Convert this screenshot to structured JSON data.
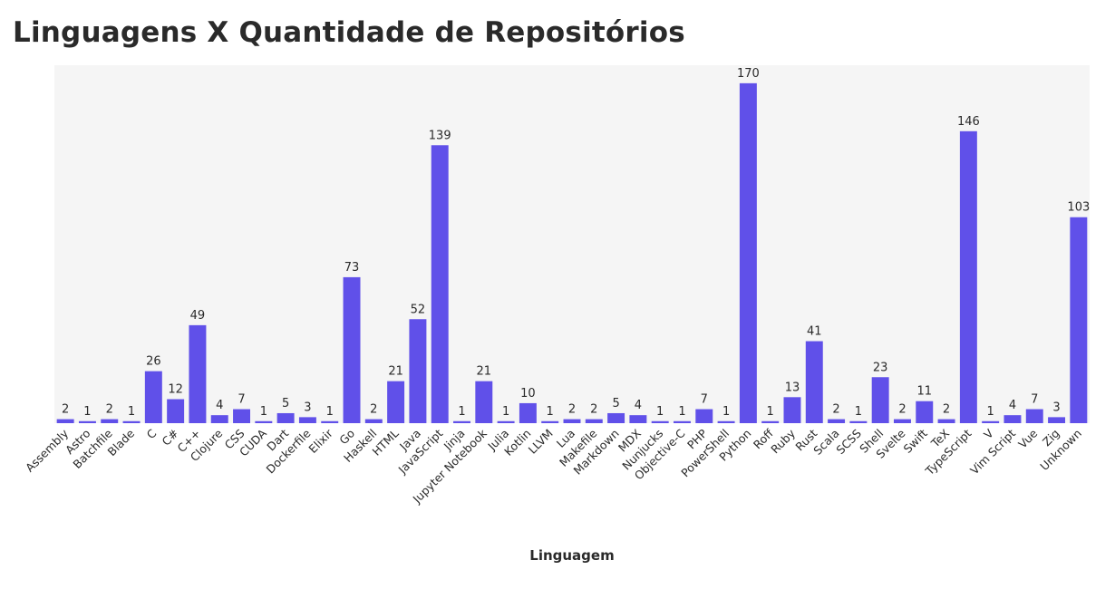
{
  "chart_data": {
    "type": "bar",
    "title": "Linguagens X Quantidade de Repositórios",
    "xlabel": "Linguagem",
    "ylabel": "",
    "ylim": [
      0,
      179
    ],
    "grid": false,
    "bar_color": "#6050e9",
    "plot_background": "#f5f5f5",
    "categories": [
      "Assembly",
      "Astro",
      "Batchfile",
      "Blade",
      "C",
      "C#",
      "C++",
      "Clojure",
      "CSS",
      "CUDA",
      "Dart",
      "Dockerfile",
      "Elixir",
      "Go",
      "Haskell",
      "HTML",
      "Java",
      "JavaScript",
      "Jinja",
      "Jupyter Notebook",
      "Julia",
      "Kotlin",
      "LLVM",
      "Lua",
      "Makefile",
      "Markdown",
      "MDX",
      "Nunjucks",
      "Objective-C",
      "PHP",
      "PowerShell",
      "Python",
      "Roff",
      "Ruby",
      "Rust",
      "Scala",
      "SCSS",
      "Shell",
      "Svelte",
      "Swift",
      "TeX",
      "TypeScript",
      "V",
      "Vim Script",
      "Vue",
      "Zig",
      "Unknown"
    ],
    "values": [
      2,
      1,
      2,
      1,
      26,
      12,
      49,
      4,
      7,
      1,
      5,
      3,
      1,
      73,
      2,
      21,
      52,
      139,
      1,
      21,
      1,
      10,
      1,
      2,
      2,
      5,
      4,
      1,
      1,
      7,
      1,
      170,
      1,
      13,
      41,
      2,
      1,
      23,
      2,
      11,
      2,
      146,
      1,
      4,
      7,
      3,
      103
    ]
  }
}
